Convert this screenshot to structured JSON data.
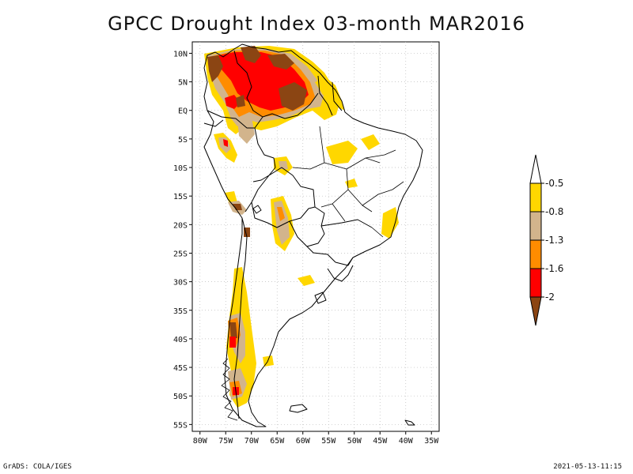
{
  "title": "GPCC Drought Index 03-month MAR2016",
  "map": {
    "lat_labels": [
      "10N",
      "5N",
      "EQ",
      "5S",
      "10S",
      "15S",
      "20S",
      "25S",
      "30S",
      "35S",
      "40S",
      "45S",
      "50S",
      "55S"
    ],
    "lon_labels": [
      "80W",
      "75W",
      "70W",
      "65W",
      "60W",
      "55W",
      "50W",
      "45W",
      "40W",
      "35W"
    ],
    "lat_values": [
      10,
      5,
      0,
      -5,
      -10,
      -15,
      -20,
      -25,
      -30,
      -35,
      -40,
      -45,
      -50,
      -55
    ],
    "lon_values": [
      -80,
      -75,
      -70,
      -65,
      -60,
      -55,
      -50,
      -45,
      -40,
      -35
    ],
    "region": "South America"
  },
  "legend": {
    "labels": [
      "-0.5",
      "-0.8",
      "-1.3",
      "-1.6",
      "-2"
    ],
    "colors": [
      "#ffffff",
      "#ffd700",
      "#d2b48c",
      "#ff8c00",
      "#ff0000",
      "#8b4513"
    ]
  },
  "footer": {
    "left": "GrADS: COLA/IGES",
    "right": "2021-05-13-11:15"
  }
}
